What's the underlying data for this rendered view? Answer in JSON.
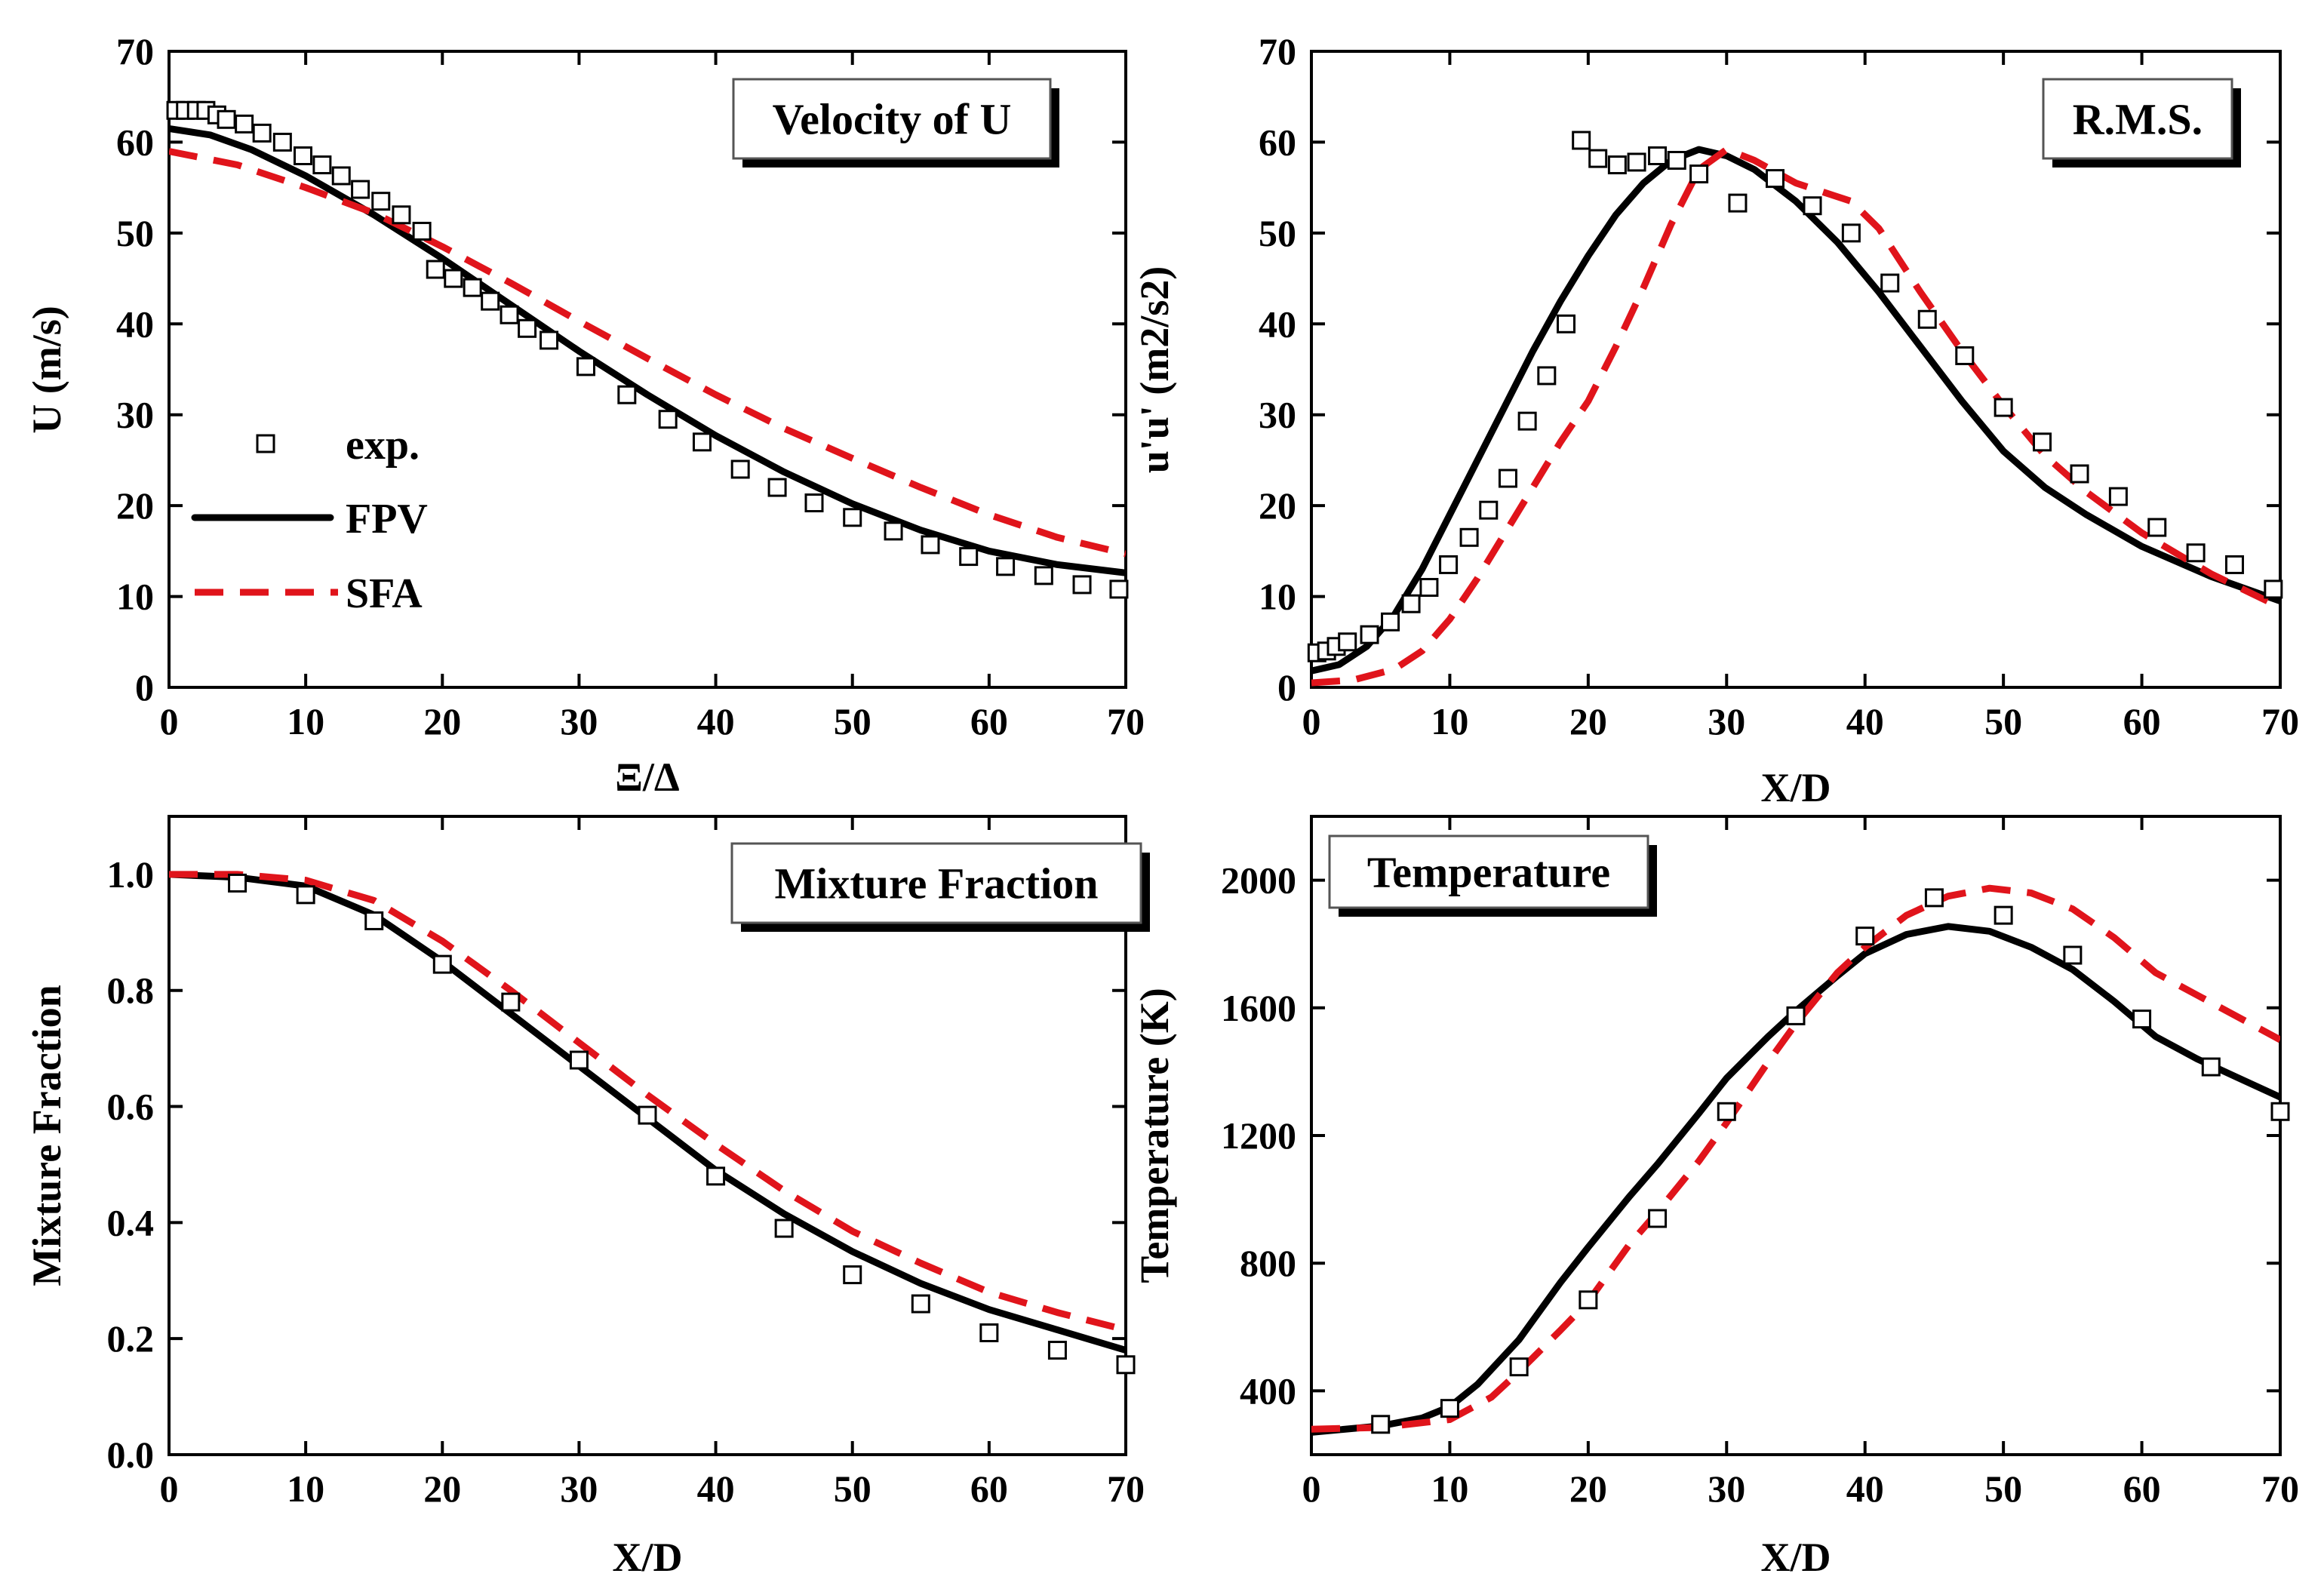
{
  "chart_data": [
    {
      "type": "line",
      "title": "Velocity of U",
      "xlabel": "Ξ/Δ",
      "ylabel": "U (m/s)",
      "xlim": [
        0,
        70
      ],
      "ylim": [
        0,
        70
      ],
      "xticks": [
        0,
        10,
        20,
        30,
        40,
        50,
        60,
        70
      ],
      "yticks": [
        0,
        10,
        20,
        30,
        40,
        50,
        60,
        70
      ],
      "legend": [
        "exp.",
        "FPV",
        "SFA"
      ],
      "series": [
        {
          "name": "exp.",
          "style": "markers",
          "x": [
            0.5,
            1.2,
            2,
            2.7,
            3.5,
            4.2,
            5.5,
            6.8,
            8.3,
            9.8,
            11.2,
            12.6,
            14,
            15.5,
            17,
            18.5,
            19.5,
            20.8,
            22.2,
            23.5,
            24.9,
            26.2,
            27.8,
            30.5,
            33.5,
            36.5,
            39,
            41.8,
            44.5,
            47.2,
            50,
            53,
            55.7,
            58.5,
            61.2,
            64,
            66.8,
            69.5
          ],
          "y": [
            63.5,
            63.5,
            63.5,
            63.5,
            63,
            62.5,
            62,
            61,
            60,
            58.5,
            57.5,
            56.3,
            54.8,
            53.5,
            52,
            50.2,
            46,
            45,
            44,
            42.5,
            41,
            39.5,
            38.2,
            35.3,
            32.2,
            29.5,
            27,
            24,
            22,
            20.3,
            18.7,
            17.2,
            15.7,
            14.4,
            13.3,
            12.3,
            11.3,
            10.8
          ]
        },
        {
          "name": "FPV",
          "style": "solid",
          "x": [
            0,
            3,
            6,
            10,
            15,
            20,
            25,
            30,
            35,
            40,
            45,
            50,
            55,
            60,
            65,
            70
          ],
          "y": [
            61.5,
            60.8,
            59.2,
            56.3,
            52,
            47.2,
            42.1,
            37,
            32.2,
            27.7,
            23.7,
            20.2,
            17.3,
            15,
            13.5,
            12.6
          ]
        },
        {
          "name": "SFA",
          "style": "dashed",
          "x": [
            0,
            5,
            10,
            15,
            20,
            25,
            30,
            35,
            40,
            45,
            50,
            55,
            60,
            65,
            70
          ],
          "y": [
            59,
            57.5,
            55,
            52.2,
            48.5,
            44.5,
            40.3,
            36.2,
            32.2,
            28.5,
            25.2,
            22,
            19,
            16.5,
            14.7
          ]
        }
      ]
    },
    {
      "type": "line",
      "title": "R.M.S.",
      "xlabel": "X/D",
      "ylabel": "u'u' (m2/s2)",
      "xlim": [
        0,
        70
      ],
      "ylim": [
        0,
        70
      ],
      "xticks": [
        0,
        10,
        20,
        30,
        40,
        50,
        60,
        70
      ],
      "yticks": [
        0,
        10,
        20,
        30,
        40,
        50,
        60,
        70
      ],
      "series": [
        {
          "name": "exp.",
          "style": "markers",
          "x": [
            0.4,
            1.1,
            1.8,
            2.6,
            4.2,
            5.7,
            7.2,
            8.5,
            9.9,
            11.4,
            12.8,
            14.2,
            15.6,
            17,
            18.4,
            19.5,
            20.7,
            22.1,
            23.5,
            25,
            26.4,
            28,
            30.8,
            33.5,
            36.2,
            39,
            41.8,
            44.5,
            47.2,
            50,
            52.8,
            55.5,
            58.3,
            61.1,
            63.9,
            66.7,
            69.5
          ],
          "y": [
            3.8,
            4,
            4.5,
            5,
            5.8,
            7.2,
            9.2,
            11,
            13.5,
            16.5,
            19.5,
            23,
            29.3,
            34.3,
            40,
            60.2,
            58.2,
            57.5,
            57.8,
            58.5,
            58,
            56.5,
            53.3,
            56,
            53,
            50,
            44.5,
            40.5,
            36.5,
            30.8,
            27,
            23.5,
            21,
            17.6,
            14.8,
            13.5,
            10.8
          ]
        },
        {
          "name": "FPV",
          "style": "solid",
          "x": [
            0,
            2,
            4,
            6,
            8,
            10,
            12,
            14,
            16,
            18,
            20,
            22,
            24,
            26,
            28,
            30,
            32,
            35,
            38,
            41,
            44,
            47,
            50,
            53,
            56,
            60,
            65,
            70
          ],
          "y": [
            1.8,
            2.5,
            4.5,
            8,
            13,
            19,
            25,
            31,
            37,
            42.5,
            47.5,
            52,
            55.5,
            58,
            59.2,
            58.5,
            57,
            53.5,
            49,
            43.5,
            37.5,
            31.5,
            26,
            22,
            19,
            15.5,
            12.2,
            9.5
          ]
        },
        {
          "name": "SFA",
          "style": "dashed",
          "x": [
            0,
            3,
            6,
            8,
            10,
            12,
            14,
            16,
            18,
            20,
            22,
            24,
            26,
            28,
            30,
            32,
            35,
            37,
            39,
            41,
            44,
            47,
            50,
            53,
            56,
            60,
            65,
            70
          ],
          "y": [
            0.5,
            0.8,
            2,
            4,
            7.5,
            12,
            17,
            22,
            27,
            31.5,
            37.5,
            44,
            51,
            57,
            59.2,
            58,
            55.5,
            54.5,
            53.5,
            50.5,
            43.5,
            37,
            31,
            25.5,
            21.5,
            17,
            12.5,
            8.8
          ]
        }
      ]
    },
    {
      "type": "line",
      "title": "Mixture Fraction",
      "xlabel": "X/D",
      "ylabel": "Mixture Fraction",
      "xlim": [
        0,
        70
      ],
      "ylim": [
        0,
        1.1
      ],
      "xticks": [
        0,
        10,
        20,
        30,
        40,
        50,
        60,
        70
      ],
      "yticks": [
        0.0,
        0.2,
        0.4,
        0.6,
        0.8,
        1.0
      ],
      "ytick_labels": [
        "0.0",
        "0.2",
        "0.4",
        "0.6",
        "0.8",
        "1.0"
      ],
      "series": [
        {
          "name": "exp.",
          "style": "markers",
          "x": [
            5,
            10,
            15,
            20,
            25,
            30,
            35,
            40,
            45,
            50,
            55,
            60,
            65,
            70
          ],
          "y": [
            0.985,
            0.965,
            0.92,
            0.845,
            0.78,
            0.68,
            0.585,
            0.48,
            0.39,
            0.31,
            0.26,
            0.21,
            0.18,
            0.155
          ]
        },
        {
          "name": "FPV",
          "style": "solid",
          "x": [
            0,
            5,
            10,
            15,
            20,
            25,
            30,
            35,
            40,
            45,
            50,
            55,
            60,
            65,
            70
          ],
          "y": [
            1.0,
            0.995,
            0.98,
            0.93,
            0.85,
            0.76,
            0.67,
            0.58,
            0.49,
            0.415,
            0.35,
            0.295,
            0.25,
            0.215,
            0.18
          ]
        },
        {
          "name": "SFA",
          "style": "dashed",
          "x": [
            0,
            5,
            10,
            15,
            20,
            25,
            30,
            35,
            40,
            45,
            50,
            55,
            60,
            65,
            70
          ],
          "y": [
            1.0,
            1.0,
            0.99,
            0.955,
            0.885,
            0.8,
            0.71,
            0.62,
            0.535,
            0.455,
            0.385,
            0.33,
            0.28,
            0.245,
            0.215
          ]
        }
      ]
    },
    {
      "type": "line",
      "title": "Temperature",
      "xlabel": "X/D",
      "ylabel": "Temperature (K)",
      "xlim": [
        0,
        70
      ],
      "ylim": [
        200,
        2200
      ],
      "xticks": [
        0,
        10,
        20,
        30,
        40,
        50,
        60,
        70
      ],
      "yticks": [
        400,
        800,
        1200,
        1600,
        2000
      ],
      "series": [
        {
          "name": "exp.",
          "style": "markers",
          "x": [
            5,
            10,
            15,
            20,
            25,
            30,
            35,
            40,
            45,
            50,
            55,
            60,
            65,
            70
          ],
          "y": [
            295,
            345,
            475,
            685,
            940,
            1275,
            1575,
            1825,
            1945,
            1890,
            1765,
            1565,
            1415,
            1275
          ]
        },
        {
          "name": "FPV",
          "style": "solid",
          "x": [
            0,
            5,
            8,
            10,
            12,
            15,
            18,
            20,
            23,
            25,
            28,
            30,
            33,
            35,
            38,
            40,
            43,
            46,
            49,
            52,
            55,
            58,
            61,
            64,
            67,
            70
          ],
          "y": [
            270,
            290,
            315,
            350,
            420,
            560,
            740,
            850,
            1010,
            1110,
            1270,
            1380,
            1510,
            1590,
            1700,
            1770,
            1830,
            1855,
            1840,
            1790,
            1720,
            1620,
            1510,
            1440,
            1380,
            1320
          ]
        },
        {
          "name": "SFA",
          "style": "dashed",
          "x": [
            0,
            5,
            10,
            13,
            15,
            18,
            20,
            23,
            25,
            28,
            30,
            33,
            35,
            38,
            40,
            43,
            46,
            49,
            52,
            55,
            58,
            61,
            64,
            67,
            70
          ],
          "y": [
            280,
            285,
            310,
            380,
            460,
            590,
            680,
            860,
            960,
            1120,
            1240,
            1430,
            1550,
            1710,
            1790,
            1890,
            1950,
            1975,
            1960,
            1910,
            1820,
            1710,
            1640,
            1570,
            1500
          ]
        }
      ]
    }
  ]
}
